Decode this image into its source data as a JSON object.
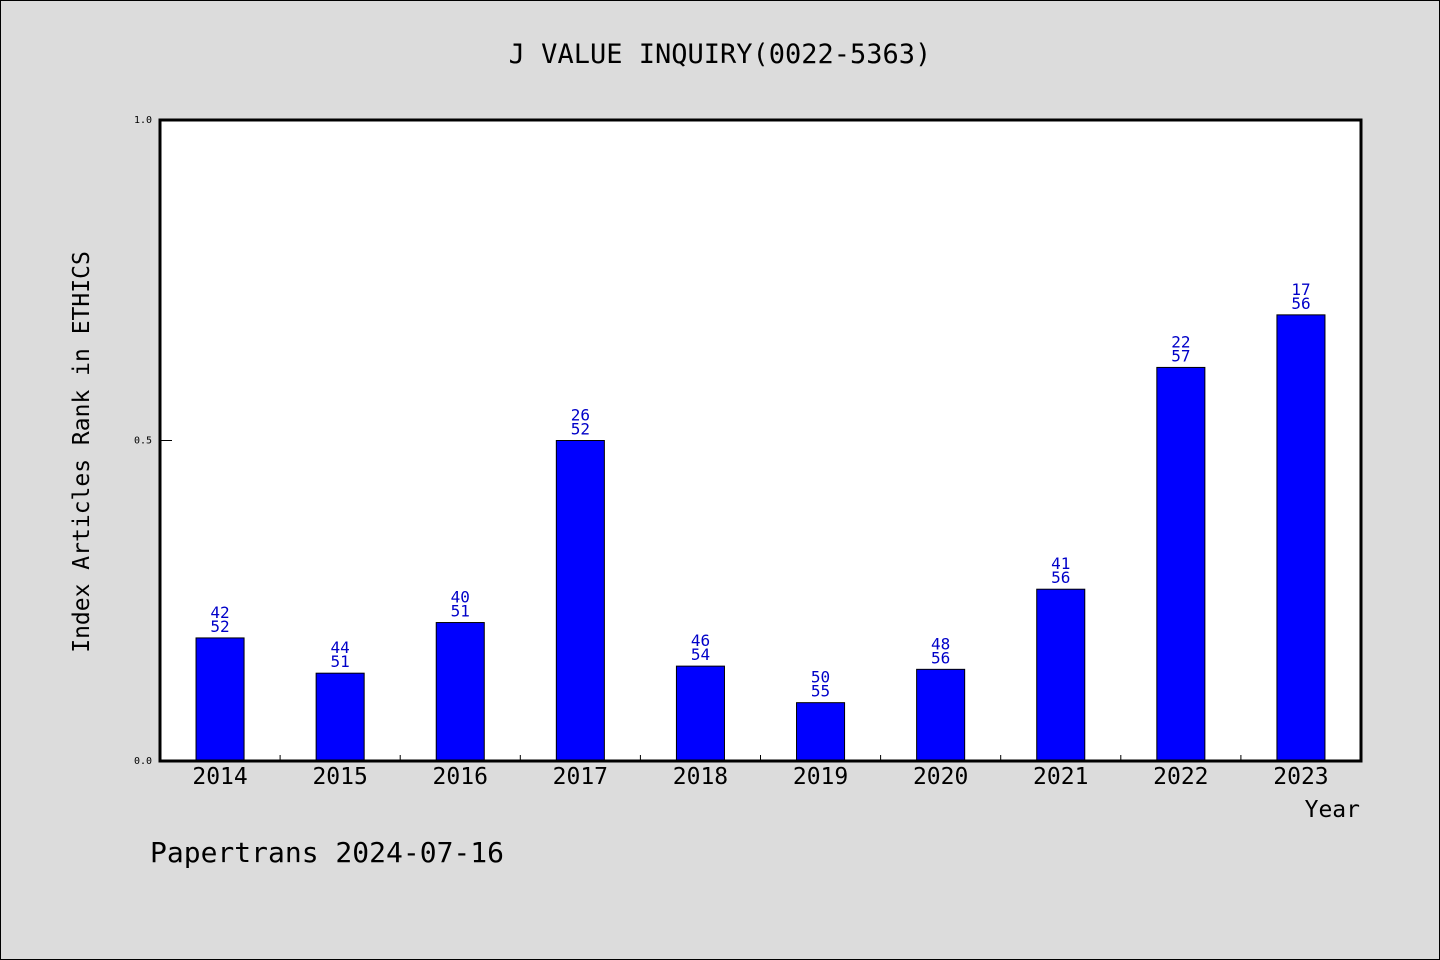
{
  "chart_data": {
    "type": "bar",
    "title": "J VALUE INQUIRY(0022-5363)",
    "xlabel": "Year",
    "ylabel": "Index Articles Rank in ETHICS",
    "ylim": [
      0,
      1
    ],
    "y_ticks": [
      "0.0",
      "0.5",
      "1.0"
    ],
    "categories": [
      "2014",
      "2015",
      "2016",
      "2017",
      "2018",
      "2019",
      "2020",
      "2021",
      "2022",
      "2023"
    ],
    "values": [
      0.192,
      0.137,
      0.216,
      0.5,
      0.148,
      0.091,
      0.143,
      0.268,
      0.614,
      0.696
    ],
    "rank": [
      "42",
      "44",
      "40",
      "26",
      "46",
      "50",
      "48",
      "41",
      "22",
      "17"
    ],
    "total": [
      "52",
      "51",
      "51",
      "52",
      "54",
      "55",
      "56",
      "56",
      "57",
      "56"
    ],
    "bar_color": "#0000ff",
    "label_color": "#0000c8",
    "background_color": "#dcdcdc",
    "plot_background": "#ffffff"
  },
  "footer": "Papertrans 2024-07-16"
}
